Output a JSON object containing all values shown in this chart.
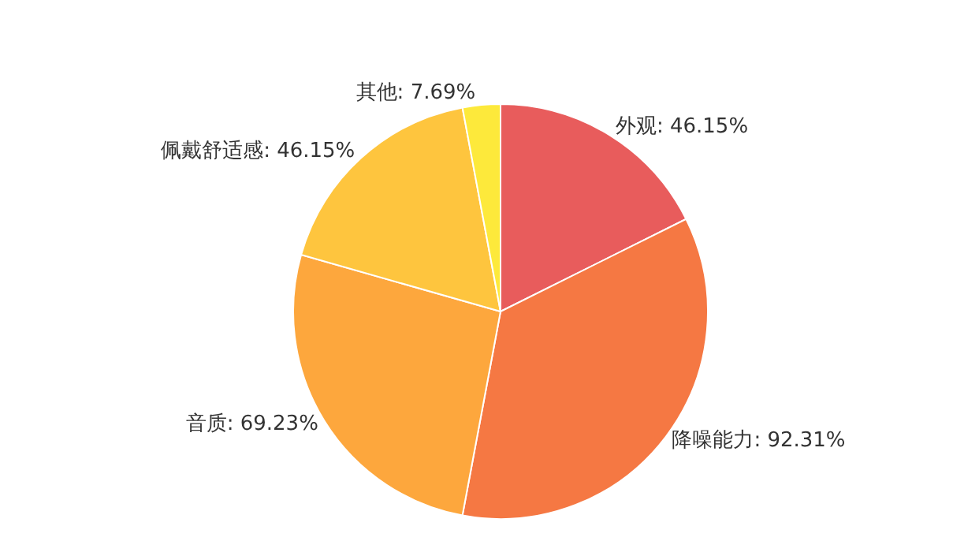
{
  "chart_data": {
    "type": "pie",
    "categories": [
      "外观",
      "降噪能力",
      "音质",
      "佩戴舒适感",
      "其他"
    ],
    "values": [
      46.15,
      92.31,
      69.23,
      46.15,
      7.69
    ],
    "colors": [
      "#e85c5c",
      "#f57843",
      "#fda73d",
      "#fec53e",
      "#fde93b"
    ],
    "value_labels": [
      "46.15%",
      "92.31%",
      "69.23%",
      "46.15%",
      "7.69%"
    ],
    "legend": false
  }
}
